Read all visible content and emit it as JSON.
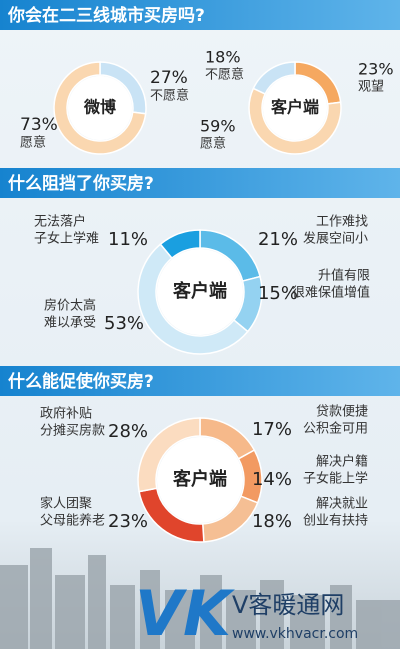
{
  "chart_data": [
    {
      "type": "pie",
      "title": "你会在二三线城市买房吗?",
      "center_label": "微博",
      "categories": [
        [
          "不愿意"
        ],
        [
          "愿意"
        ]
      ],
      "values": [
        27,
        73
      ],
      "value_labels": [
        "27%",
        "73%"
      ],
      "colors": [
        "#c9e3f5",
        "#fad7b0"
      ]
    },
    {
      "type": "pie",
      "center_label": "客户端",
      "categories": [
        [
          "观望"
        ],
        [
          "愿意"
        ],
        [
          "不愿意"
        ]
      ],
      "values": [
        23,
        59,
        18
      ],
      "value_labels": [
        "23%",
        "59%",
        "18%"
      ],
      "colors": [
        "#f5a860",
        "#fad7b0",
        "#c9e3f5"
      ]
    },
    {
      "type": "pie",
      "title": "什么阻挡了你买房?",
      "center_label": "客户端",
      "categories": [
        [
          "工作难找",
          "发展空间小"
        ],
        [
          "升值有限",
          "很难保值增值"
        ],
        [
          "房价太高",
          "难以承受"
        ],
        [
          "无法落户",
          "子女上学难"
        ]
      ],
      "values": [
        21,
        15,
        53,
        11
      ],
      "value_labels": [
        "21%",
        "15%",
        "53%",
        "11%"
      ],
      "colors": [
        "#5bbbe8",
        "#94d2f1",
        "#cfe9f7",
        "#1a9fe0"
      ]
    },
    {
      "type": "pie",
      "title": "什么能促使你买房?",
      "center_label": "客户端",
      "categories": [
        [
          "贷款便捷",
          "公积金可用"
        ],
        [
          "解决户籍",
          "子女能上学"
        ],
        [
          "解决就业",
          "创业有扶持"
        ],
        [
          "家人团聚",
          "父母能养老"
        ],
        [
          "政府补贴",
          "分摊买房款"
        ]
      ],
      "values": [
        17,
        14,
        18,
        23,
        28
      ],
      "value_labels": [
        "17%",
        "14%",
        "18%",
        "23%",
        "28%"
      ],
      "colors": [
        "#f6b98a",
        "#f29a62",
        "#f5bf94",
        "#e0452c",
        "#fbdcc0"
      ]
    }
  ],
  "watermark": {
    "logo": "VK",
    "name": "V客暖通网",
    "url": "www.vkhvacr.com"
  }
}
